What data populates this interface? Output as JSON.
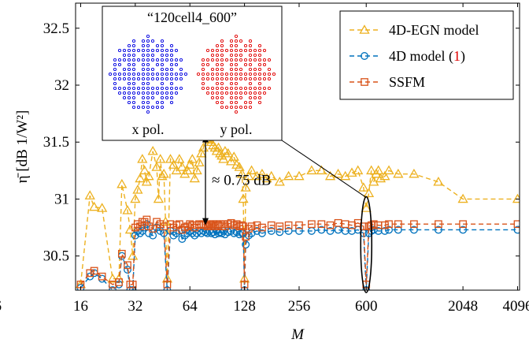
{
  "chart_data": {
    "type": "line",
    "xlabel": "M",
    "ylabel": "η̄ [dB 1/W²]",
    "xscale": "log2",
    "xlim": [
      15,
      4200
    ],
    "ylim": [
      30.2,
      32.72
    ],
    "x_ticks": [
      16,
      32,
      64,
      128,
      256,
      600,
      2048,
      4096
    ],
    "x_tick_labels": [
      "16",
      "32",
      "64",
      "128",
      "256",
      "600",
      "2048",
      "4096"
    ],
    "x_tick_clipped_left": "6",
    "y_ticks": [
      30.5,
      31,
      31.5,
      32,
      32.5
    ],
    "y_tick_labels": [
      "30.5",
      "31",
      "31.5",
      "32",
      "32.5"
    ],
    "legend_position": "top-right",
    "series": [
      {
        "name": "4D-EGN model",
        "color": "#EDB120",
        "marker": "triangle",
        "line": "dashed",
        "points": [
          [
            16,
            30.25
          ],
          [
            18,
            31.03
          ],
          [
            19,
            30.93
          ],
          [
            21,
            30.92
          ],
          [
            24,
            30.3
          ],
          [
            26,
            30.3
          ],
          [
            27,
            31.13
          ],
          [
            29,
            30.9
          ],
          [
            30,
            30.73
          ],
          [
            31,
            30.5
          ],
          [
            32,
            31.0
          ],
          [
            33,
            31.08
          ],
          [
            34,
            31.18
          ],
          [
            35,
            31.35
          ],
          [
            36,
            31.25
          ],
          [
            37,
            31.15
          ],
          [
            38,
            31.2
          ],
          [
            40,
            31.42
          ],
          [
            42,
            31.28
          ],
          [
            43,
            31.0
          ],
          [
            44,
            31.35
          ],
          [
            45,
            31.2
          ],
          [
            46,
            31.22
          ],
          [
            47,
            30.8
          ],
          [
            48,
            30.3
          ],
          [
            50,
            31.35
          ],
          [
            52,
            31.3
          ],
          [
            54,
            31.25
          ],
          [
            56,
            31.35
          ],
          [
            58,
            31.28
          ],
          [
            60,
            31.22
          ],
          [
            62,
            31.25
          ],
          [
            64,
            31.3
          ],
          [
            66,
            31.35
          ],
          [
            68,
            31.18
          ],
          [
            70,
            31.25
          ],
          [
            72,
            31.32
          ],
          [
            74,
            31.4
          ],
          [
            76,
            31.45
          ],
          [
            78,
            31.57
          ],
          [
            80,
            31.53
          ],
          [
            82,
            31.52
          ],
          [
            84,
            31.5
          ],
          [
            86,
            31.47
          ],
          [
            88,
            31.45
          ],
          [
            90,
            31.42
          ],
          [
            92,
            31.45
          ],
          [
            94,
            31.4
          ],
          [
            96,
            31.38
          ],
          [
            98,
            31.35
          ],
          [
            100,
            31.42
          ],
          [
            104,
            31.4
          ],
          [
            108,
            31.33
          ],
          [
            112,
            31.37
          ],
          [
            116,
            31.3
          ],
          [
            120,
            31.28
          ],
          [
            124,
            31.22
          ],
          [
            126,
            31.0
          ],
          [
            128,
            30.3
          ],
          [
            130,
            31.1
          ],
          [
            135,
            31.2
          ],
          [
            140,
            31.25
          ],
          [
            150,
            31.2
          ],
          [
            160,
            31.22
          ],
          [
            170,
            31.18
          ],
          [
            180,
            31.2
          ],
          [
            200,
            31.15
          ],
          [
            224,
            31.2
          ],
          [
            256,
            31.2
          ],
          [
            300,
            31.25
          ],
          [
            340,
            31.25
          ],
          [
            380,
            31.2
          ],
          [
            420,
            31.22
          ],
          [
            460,
            31.2
          ],
          [
            500,
            31.23
          ],
          [
            540,
            31.25
          ],
          [
            580,
            31.1
          ],
          [
            600,
            30.92
          ],
          [
            620,
            31.05
          ],
          [
            640,
            31.25
          ],
          [
            660,
            31.15
          ],
          [
            680,
            31.22
          ],
          [
            700,
            31.25
          ],
          [
            720,
            31.18
          ],
          [
            760,
            31.2
          ],
          [
            800,
            31.25
          ],
          [
            900,
            31.22
          ],
          [
            1100,
            31.22
          ],
          [
            1500,
            31.15
          ],
          [
            2048,
            31.0
          ],
          [
            4096,
            31.0
          ]
        ]
      },
      {
        "name": "4D model (1)",
        "color": "#0072BD",
        "marker": "circle",
        "line": "dashed",
        "points": [
          [
            16,
            30.22
          ],
          [
            18,
            30.32
          ],
          [
            19,
            30.35
          ],
          [
            21,
            30.3
          ],
          [
            24,
            30.2
          ],
          [
            26,
            30.25
          ],
          [
            27,
            30.5
          ],
          [
            29,
            30.38
          ],
          [
            30,
            30.2
          ],
          [
            31,
            30.2
          ],
          [
            32,
            30.68
          ],
          [
            33,
            30.72
          ],
          [
            34,
            30.7
          ],
          [
            35,
            30.72
          ],
          [
            36,
            30.75
          ],
          [
            37,
            30.78
          ],
          [
            38,
            30.7
          ],
          [
            40,
            30.68
          ],
          [
            42,
            30.75
          ],
          [
            44,
            30.72
          ],
          [
            46,
            30.7
          ],
          [
            48,
            30.2
          ],
          [
            50,
            30.72
          ],
          [
            52,
            30.68
          ],
          [
            54,
            30.7
          ],
          [
            56,
            30.72
          ],
          [
            58,
            30.65
          ],
          [
            60,
            30.68
          ],
          [
            62,
            30.7
          ],
          [
            64,
            30.72
          ],
          [
            66,
            30.7
          ],
          [
            68,
            30.68
          ],
          [
            70,
            30.7
          ],
          [
            72,
            30.72
          ],
          [
            74,
            30.7
          ],
          [
            76,
            30.72
          ],
          [
            78,
            30.71
          ],
          [
            80,
            30.7
          ],
          [
            82,
            30.72
          ],
          [
            84,
            30.7
          ],
          [
            86,
            30.71
          ],
          [
            88,
            30.69
          ],
          [
            90,
            30.72
          ],
          [
            92,
            30.7
          ],
          [
            94,
            30.71
          ],
          [
            96,
            30.7
          ],
          [
            98,
            30.72
          ],
          [
            100,
            30.69
          ],
          [
            104,
            30.71
          ],
          [
            108,
            30.72
          ],
          [
            112,
            30.7
          ],
          [
            116,
            30.71
          ],
          [
            120,
            30.69
          ],
          [
            124,
            30.7
          ],
          [
            126,
            30.7
          ],
          [
            128,
            30.2
          ],
          [
            130,
            30.6
          ],
          [
            135,
            30.68
          ],
          [
            140,
            30.7
          ],
          [
            150,
            30.72
          ],
          [
            160,
            30.7
          ],
          [
            180,
            30.72
          ],
          [
            200,
            30.71
          ],
          [
            224,
            30.72
          ],
          [
            256,
            30.72
          ],
          [
            300,
            30.72
          ],
          [
            340,
            30.73
          ],
          [
            380,
            30.72
          ],
          [
            420,
            30.73
          ],
          [
            460,
            30.72
          ],
          [
            500,
            30.72
          ],
          [
            540,
            30.73
          ],
          [
            580,
            30.7
          ],
          [
            600,
            30.2
          ],
          [
            620,
            30.7
          ],
          [
            640,
            30.72
          ],
          [
            660,
            30.73
          ],
          [
            700,
            30.72
          ],
          [
            760,
            30.72
          ],
          [
            800,
            30.73
          ],
          [
            900,
            30.73
          ],
          [
            1100,
            30.73
          ],
          [
            1500,
            30.73
          ],
          [
            2048,
            30.73
          ],
          [
            4096,
            30.73
          ]
        ]
      },
      {
        "name": "SSFM",
        "color": "#D95319",
        "marker": "square",
        "line": "dashed",
        "points": [
          [
            16,
            30.25
          ],
          [
            18,
            30.35
          ],
          [
            19,
            30.37
          ],
          [
            21,
            30.32
          ],
          [
            24,
            30.25
          ],
          [
            26,
            30.27
          ],
          [
            27,
            30.52
          ],
          [
            29,
            30.42
          ],
          [
            30,
            30.25
          ],
          [
            31,
            30.25
          ],
          [
            32,
            30.75
          ],
          [
            33,
            30.78
          ],
          [
            34,
            30.76
          ],
          [
            35,
            30.8
          ],
          [
            36,
            30.8
          ],
          [
            37,
            30.82
          ],
          [
            38,
            30.76
          ],
          [
            40,
            30.74
          ],
          [
            42,
            30.8
          ],
          [
            44,
            30.78
          ],
          [
            46,
            30.76
          ],
          [
            48,
            30.25
          ],
          [
            50,
            30.78
          ],
          [
            52,
            30.75
          ],
          [
            54,
            30.77
          ],
          [
            56,
            30.78
          ],
          [
            58,
            30.73
          ],
          [
            60,
            30.75
          ],
          [
            62,
            30.76
          ],
          [
            64,
            30.78
          ],
          [
            66,
            30.77
          ],
          [
            68,
            30.75
          ],
          [
            70,
            30.77
          ],
          [
            72,
            30.78
          ],
          [
            74,
            30.77
          ],
          [
            76,
            30.78
          ],
          [
            78,
            30.77
          ],
          [
            80,
            30.76
          ],
          [
            82,
            30.78
          ],
          [
            84,
            30.77
          ],
          [
            86,
            30.78
          ],
          [
            88,
            30.76
          ],
          [
            90,
            30.78
          ],
          [
            92,
            30.77
          ],
          [
            94,
            30.78
          ],
          [
            96,
            30.76
          ],
          [
            98,
            30.78
          ],
          [
            100,
            30.76
          ],
          [
            104,
            30.78
          ],
          [
            108,
            30.79
          ],
          [
            112,
            30.77
          ],
          [
            116,
            30.78
          ],
          [
            120,
            30.76
          ],
          [
            124,
            30.77
          ],
          [
            126,
            30.76
          ],
          [
            128,
            30.25
          ],
          [
            130,
            30.67
          ],
          [
            135,
            30.74
          ],
          [
            140,
            30.76
          ],
          [
            150,
            30.77
          ],
          [
            160,
            30.75
          ],
          [
            180,
            30.77
          ],
          [
            200,
            30.76
          ],
          [
            224,
            30.77
          ],
          [
            256,
            30.77
          ],
          [
            300,
            30.78
          ],
          [
            340,
            30.78
          ],
          [
            380,
            30.77
          ],
          [
            420,
            30.79
          ],
          [
            460,
            30.78
          ],
          [
            500,
            30.77
          ],
          [
            540,
            30.79
          ],
          [
            580,
            30.76
          ],
          [
            600,
            30.25
          ],
          [
            620,
            30.76
          ],
          [
            640,
            30.77
          ],
          [
            660,
            30.78
          ],
          [
            700,
            30.77
          ],
          [
            760,
            30.77
          ],
          [
            800,
            30.78
          ],
          [
            900,
            30.78
          ],
          [
            1100,
            30.78
          ],
          [
            1500,
            30.78
          ],
          [
            2048,
            30.78
          ],
          [
            4096,
            30.78
          ]
        ]
      }
    ],
    "legend": [
      {
        "label_main": "4D-EGN model",
        "label_ref": ""
      },
      {
        "label_main": "4D model (",
        "label_ref": "1",
        "label_close": ")"
      },
      {
        "label_main": "SSFM",
        "label_ref": ""
      }
    ],
    "legend_ref_color": "#E00000",
    "annotation": {
      "text": "≈ 0.75 dB",
      "arrow_x": 78,
      "arrow_y_top": 31.56,
      "arrow_y_bottom": 30.77
    },
    "highlight_ellipse_x": 600,
    "inset": {
      "title": "“120cell4_600”",
      "left_label": "x pol.",
      "right_label": "y pol.",
      "left_color": "#0000E0",
      "right_color": "#E00000"
    }
  }
}
